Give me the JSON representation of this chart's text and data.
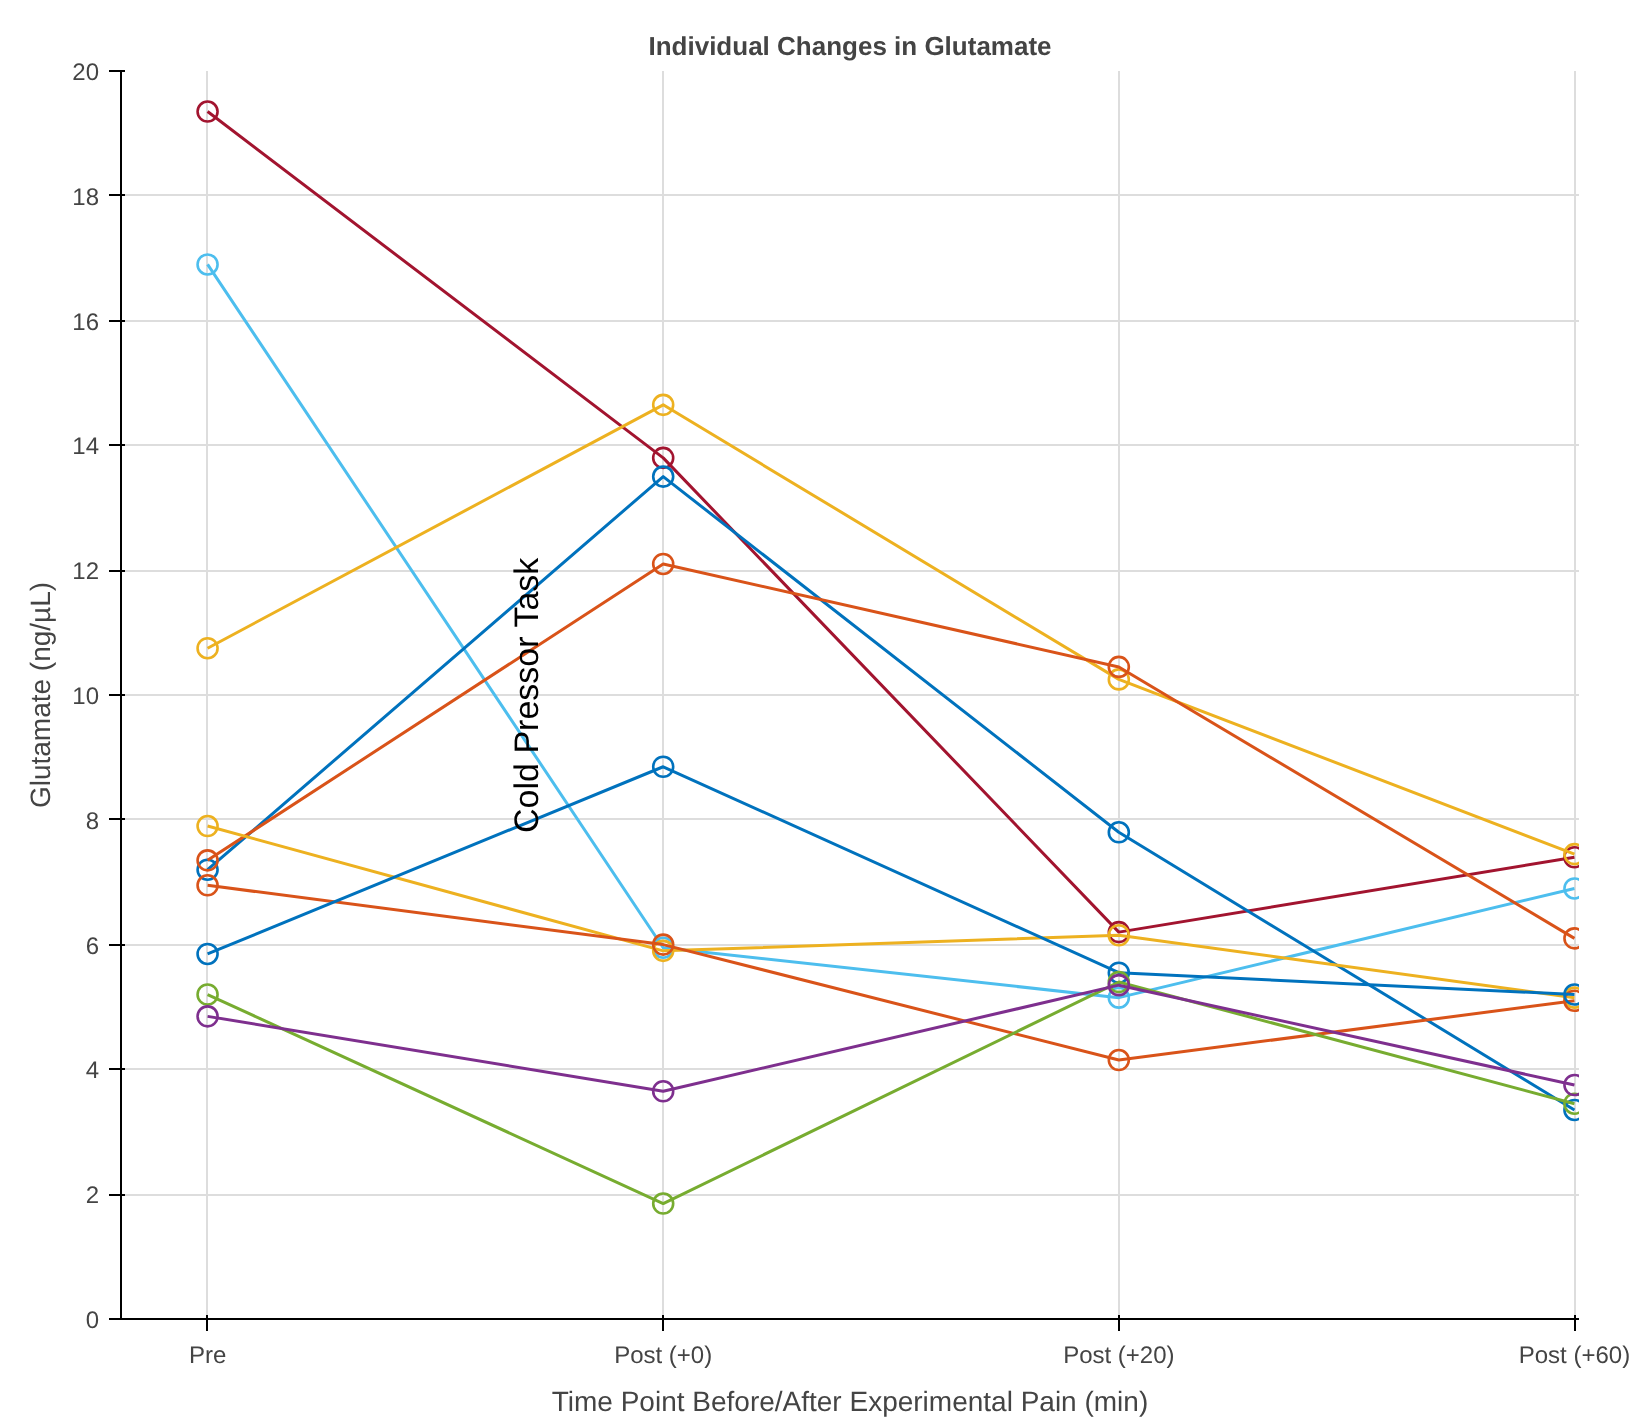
{
  "chart_data": {
    "type": "line",
    "title": "Individual Changes in Glutamate",
    "xlabel": "Time Point Before/After Experimental Pain (min)",
    "ylabel": "Glutamate (ng/µL)",
    "categories": [
      "Pre",
      "Post (+0)",
      "Post (+20)",
      "Post (+60)"
    ],
    "series": [
      {
        "color": "#a2142f",
        "values": [
          19.35,
          13.8,
          6.2,
          7.4
        ]
      },
      {
        "color": "#4dbeee",
        "values": [
          16.9,
          5.95,
          5.15,
          6.9
        ]
      },
      {
        "color": "#edb120",
        "values": [
          10.75,
          14.65,
          10.25,
          7.45
        ]
      },
      {
        "color": "#0072bd",
        "values": [
          7.2,
          13.5,
          7.8,
          3.35
        ]
      },
      {
        "color": "#d95319",
        "values": [
          7.35,
          12.1,
          10.45,
          6.1
        ]
      },
      {
        "color": "#edb120",
        "values": [
          7.9,
          5.9,
          6.15,
          5.15
        ]
      },
      {
        "color": "#d95319",
        "values": [
          6.95,
          6.0,
          4.15,
          5.1
        ]
      },
      {
        "color": "#0072bd",
        "values": [
          5.85,
          8.85,
          5.55,
          5.2
        ]
      },
      {
        "color": "#77ac30",
        "values": [
          5.2,
          1.85,
          5.4,
          3.45
        ]
      },
      {
        "color": "#7e2f8e",
        "values": [
          4.85,
          3.65,
          5.35,
          3.75
        ]
      }
    ],
    "ylim": [
      0,
      20
    ],
    "yticks": [
      0,
      2,
      4,
      6,
      8,
      10,
      12,
      14,
      16,
      18,
      20
    ],
    "grid": true,
    "marker": "circle",
    "line_style": "solid",
    "annotations": [
      "Cold Pressor Task"
    ]
  }
}
